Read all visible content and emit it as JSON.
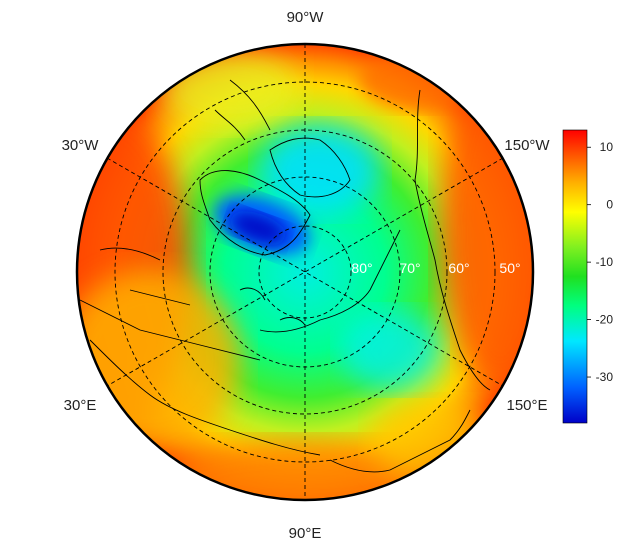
{
  "map": {
    "projection": "north-polar-stereographic",
    "longitude_labels": {
      "top": "90°W",
      "upper_left": "30°W",
      "upper_right": "150°W",
      "lower_left": "30°E",
      "lower_right": "150°E",
      "bottom": "90°E"
    },
    "latitude_labels": [
      "80°",
      "70°",
      "60°",
      "50°"
    ],
    "graticule_style": "dashed"
  },
  "colorbar": {
    "ticks": [
      "10",
      "0",
      "-10",
      "-20",
      "-30"
    ],
    "tick_values": [
      10,
      0,
      -10,
      -20,
      -30
    ],
    "range": [
      -38,
      13
    ],
    "colors": [
      "#0000c8",
      "#0060ff",
      "#00e8ff",
      "#00ff80",
      "#20e020",
      "#80f020",
      "#ffff00",
      "#ffb000",
      "#ff5000",
      "#ff0000"
    ]
  }
}
